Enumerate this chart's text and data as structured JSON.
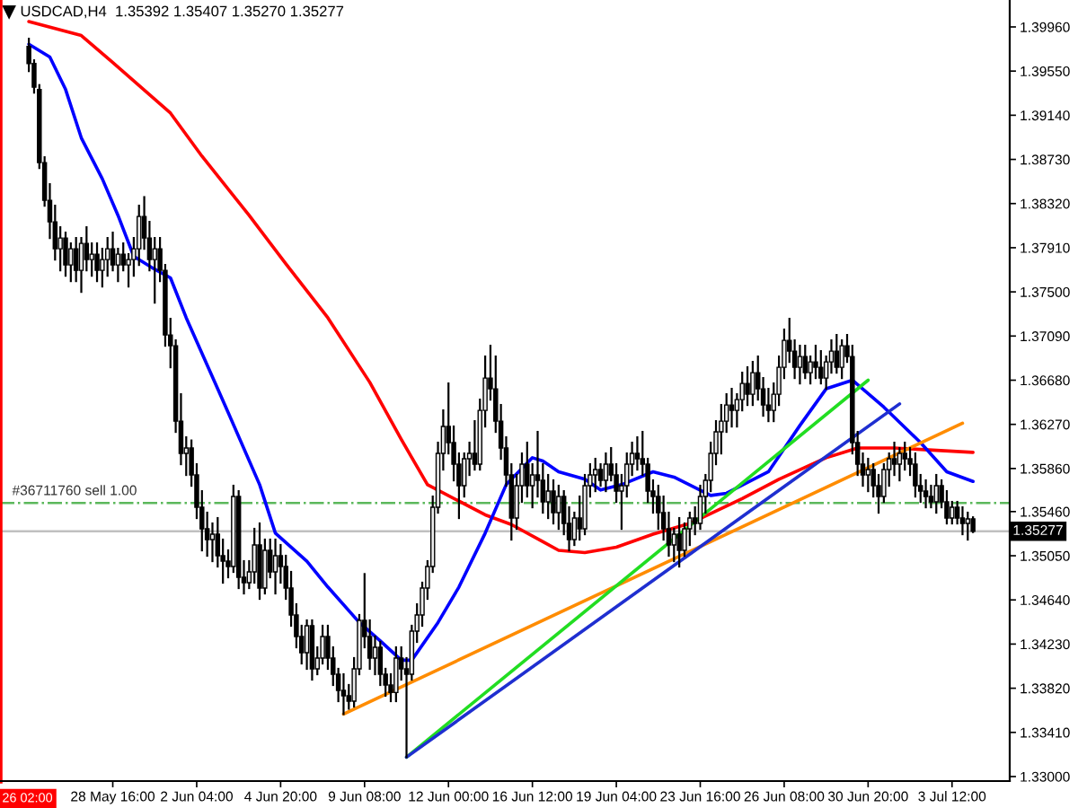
{
  "chart_data": {
    "type": "candlestick",
    "title": "USDCAD,H4  1.35392 1.35407 1.35270 1.35277",
    "categories": [
      null,
      null,
      null,
      null,
      null,
      null,
      null,
      null,
      null,
      null,
      null,
      null,
      null,
      null,
      null,
      null,
      "28 May 16:00",
      null,
      null,
      null,
      null,
      null,
      null,
      null,
      null,
      null,
      null,
      null,
      null,
      null,
      null,
      null,
      "2 Jun 04:00",
      null,
      null,
      null,
      null,
      null,
      null,
      null,
      null,
      null,
      null,
      null,
      null,
      null,
      null,
      null,
      "4 Jun 20:00",
      null,
      null,
      null,
      null,
      null,
      null,
      null,
      null,
      null,
      null,
      null,
      null,
      null,
      null,
      null,
      "9 Jun 08:00",
      null,
      null,
      null,
      null,
      null,
      null,
      null,
      null,
      null,
      null,
      null,
      null,
      null,
      null,
      null,
      "12 Jun 00:00",
      null,
      null,
      null,
      null,
      null,
      null,
      null,
      null,
      null,
      null,
      null,
      null,
      null,
      null,
      null,
      "16 Jun 12:00",
      null,
      null,
      null,
      null,
      null,
      null,
      null,
      null,
      null,
      null,
      null,
      null,
      null,
      null,
      null,
      "19 Jun 04:00",
      null,
      null,
      null,
      null,
      null,
      null,
      null,
      null,
      null,
      null,
      null,
      null,
      null,
      null,
      null,
      "23 Jun 16:00",
      null,
      null,
      null,
      null,
      null,
      null,
      null,
      null,
      null,
      null,
      null,
      null,
      null,
      null,
      null,
      "26 Jun 08:00",
      null,
      null,
      null,
      null,
      null,
      null,
      null,
      null,
      null,
      null,
      null,
      null,
      null,
      null,
      null,
      "30 Jun 20:00",
      null,
      null,
      null,
      null,
      null,
      null,
      null,
      null,
      null,
      null,
      null,
      null,
      null,
      null,
      null,
      "3 Jul 12:00",
      null,
      null,
      null,
      null
    ],
    "ohlc": [
      [
        1.3978,
        1.3985,
        1.3955,
        1.3962
      ],
      [
        1.3962,
        1.3965,
        1.3935,
        1.394
      ],
      [
        1.3938,
        1.3942,
        1.3865,
        1.387
      ],
      [
        1.387,
        1.3875,
        1.383,
        1.3835
      ],
      [
        1.3835,
        1.385,
        1.38,
        1.3815
      ],
      [
        1.3815,
        1.383,
        1.378,
        1.379
      ],
      [
        1.379,
        1.381,
        1.377,
        1.38
      ],
      [
        1.38,
        1.3805,
        1.3765,
        1.3775
      ],
      [
        1.3775,
        1.3795,
        1.376,
        1.379
      ],
      [
        1.379,
        1.38,
        1.376,
        1.377
      ],
      [
        1.377,
        1.38,
        1.375,
        1.3795
      ],
      [
        1.3795,
        1.381,
        1.377,
        1.378
      ],
      [
        1.378,
        1.3795,
        1.3765,
        1.3785
      ],
      [
        1.3785,
        1.3795,
        1.376,
        1.377
      ],
      [
        1.377,
        1.379,
        1.3755,
        1.378
      ],
      [
        1.378,
        1.38,
        1.3765,
        1.379
      ],
      [
        1.379,
        1.3805,
        1.377,
        1.3775
      ],
      [
        1.3775,
        1.379,
        1.376,
        1.3785
      ],
      [
        1.3785,
        1.3795,
        1.377,
        1.3775
      ],
      [
        1.3775,
        1.3785,
        1.3755,
        1.378
      ],
      [
        1.378,
        1.38,
        1.3765,
        1.379
      ],
      [
        1.379,
        1.383,
        1.3775,
        1.382
      ],
      [
        1.382,
        1.3838,
        1.379,
        1.38
      ],
      [
        1.38,
        1.3815,
        1.377,
        1.378
      ],
      [
        1.378,
        1.38,
        1.374,
        1.379
      ],
      [
        1.379,
        1.38,
        1.376,
        1.377
      ],
      [
        1.377,
        1.3775,
        1.37,
        1.371
      ],
      [
        1.371,
        1.3725,
        1.368,
        1.37
      ],
      [
        1.37,
        1.3705,
        1.362,
        1.363
      ],
      [
        1.363,
        1.3655,
        1.359,
        1.36
      ],
      [
        1.36,
        1.3615,
        1.358,
        1.3605
      ],
      [
        1.3605,
        1.3612,
        1.357,
        1.358
      ],
      [
        1.358,
        1.359,
        1.354,
        1.355
      ],
      [
        1.355,
        1.3565,
        1.351,
        1.353
      ],
      [
        1.353,
        1.3545,
        1.3505,
        1.352
      ],
      [
        1.352,
        1.3535,
        1.35,
        1.3525
      ],
      [
        1.3525,
        1.354,
        1.3495,
        1.3505
      ],
      [
        1.3505,
        1.352,
        1.348,
        1.35
      ],
      [
        1.35,
        1.351,
        1.3485,
        1.3495
      ],
      [
        1.3495,
        1.357,
        1.349,
        1.356
      ],
      [
        1.356,
        1.3565,
        1.3475,
        1.3485
      ],
      [
        1.3485,
        1.35,
        1.347,
        1.348
      ],
      [
        1.348,
        1.35,
        1.3475,
        1.349
      ],
      [
        1.349,
        1.353,
        1.348,
        1.3515
      ],
      [
        1.3515,
        1.3535,
        1.3465,
        1.3475
      ],
      [
        1.3475,
        1.352,
        1.347,
        1.351
      ],
      [
        1.351,
        1.352,
        1.3485,
        1.349
      ],
      [
        1.349,
        1.352,
        1.347,
        1.3505
      ],
      [
        1.3505,
        1.3515,
        1.348,
        1.3495
      ],
      [
        1.3495,
        1.3505,
        1.3465,
        1.3475
      ],
      [
        1.3475,
        1.349,
        1.344,
        1.345
      ],
      [
        1.345,
        1.346,
        1.342,
        1.343
      ],
      [
        1.343,
        1.344,
        1.3405,
        1.3415
      ],
      [
        1.3415,
        1.3445,
        1.34,
        1.344
      ],
      [
        1.344,
        1.3445,
        1.339,
        1.34
      ],
      [
        1.34,
        1.342,
        1.3395,
        1.341
      ],
      [
        1.341,
        1.344,
        1.3405,
        1.343
      ],
      [
        1.343,
        1.344,
        1.34,
        1.341
      ],
      [
        1.341,
        1.342,
        1.3385,
        1.3395
      ],
      [
        1.3395,
        1.34,
        1.337,
        1.338
      ],
      [
        1.338,
        1.3395,
        1.3358,
        1.3375
      ],
      [
        1.3375,
        1.3385,
        1.3363,
        1.337
      ],
      [
        1.337,
        1.341,
        1.3365,
        1.34
      ],
      [
        1.34,
        1.345,
        1.3395,
        1.3445
      ],
      [
        1.3445,
        1.3488,
        1.342,
        1.343
      ],
      [
        1.343,
        1.3445,
        1.34,
        1.341
      ],
      [
        1.341,
        1.343,
        1.3395,
        1.342
      ],
      [
        1.342,
        1.3425,
        1.3385,
        1.3395
      ],
      [
        1.3395,
        1.34,
        1.3375,
        1.3385
      ],
      [
        1.3385,
        1.3395,
        1.337,
        1.3378
      ],
      [
        1.3378,
        1.342,
        1.337,
        1.341
      ],
      [
        1.341,
        1.342,
        1.339,
        1.34
      ],
      [
        1.34,
        1.341,
        1.3318,
        1.3395
      ],
      [
        1.3395,
        1.344,
        1.339,
        1.3435
      ],
      [
        1.3435,
        1.346,
        1.3425,
        1.345
      ],
      [
        1.345,
        1.348,
        1.344,
        1.3475
      ],
      [
        1.3475,
        1.35,
        1.3465,
        1.3495
      ],
      [
        1.3495,
        1.356,
        1.349,
        1.355
      ],
      [
        1.355,
        1.361,
        1.3545,
        1.36
      ],
      [
        1.36,
        1.364,
        1.3585,
        1.3625
      ],
      [
        1.3625,
        1.3665,
        1.36,
        1.361
      ],
      [
        1.361,
        1.3625,
        1.3575,
        1.359
      ],
      [
        1.359,
        1.36,
        1.354,
        1.357
      ],
      [
        1.357,
        1.36,
        1.356,
        1.3595
      ],
      [
        1.3595,
        1.361,
        1.358,
        1.36
      ],
      [
        1.36,
        1.363,
        1.3585,
        1.359
      ],
      [
        1.359,
        1.365,
        1.3585,
        1.364
      ],
      [
        1.364,
        1.369,
        1.3625,
        1.367
      ],
      [
        1.367,
        1.37,
        1.365,
        1.366
      ],
      [
        1.366,
        1.369,
        1.362,
        1.363
      ],
      [
        1.363,
        1.3645,
        1.3595,
        1.3605
      ],
      [
        1.3605,
        1.3615,
        1.357,
        1.358
      ],
      [
        1.358,
        1.359,
        1.352,
        1.354
      ],
      [
        1.354,
        1.358,
        1.353,
        1.357
      ],
      [
        1.357,
        1.36,
        1.3555,
        1.359
      ],
      [
        1.359,
        1.361,
        1.356,
        1.357
      ],
      [
        1.357,
        1.359,
        1.355,
        1.358
      ],
      [
        1.358,
        1.362,
        1.356,
        1.3575
      ],
      [
        1.3575,
        1.359,
        1.3545,
        1.3555
      ],
      [
        1.3555,
        1.358,
        1.354,
        1.3565
      ],
      [
        1.3565,
        1.3575,
        1.3535,
        1.3545
      ],
      [
        1.3545,
        1.357,
        1.353,
        1.356
      ],
      [
        1.356,
        1.3565,
        1.3525,
        1.3535
      ],
      [
        1.3535,
        1.355,
        1.351,
        1.352
      ],
      [
        1.352,
        1.3545,
        1.3515,
        1.354
      ],
      [
        1.354,
        1.356,
        1.352,
        1.353
      ],
      [
        1.353,
        1.358,
        1.3525,
        1.357
      ],
      [
        1.357,
        1.359,
        1.356,
        1.358
      ],
      [
        1.358,
        1.3595,
        1.3565,
        1.3585
      ],
      [
        1.3585,
        1.359,
        1.357,
        1.3575
      ],
      [
        1.3575,
        1.36,
        1.3565,
        1.359
      ],
      [
        1.359,
        1.3605,
        1.3575,
        1.358
      ],
      [
        1.358,
        1.359,
        1.3555,
        1.3565
      ],
      [
        1.3565,
        1.358,
        1.353,
        1.357
      ],
      [
        1.357,
        1.36,
        1.356,
        1.359
      ],
      [
        1.359,
        1.361,
        1.358,
        1.36
      ],
      [
        1.36,
        1.3615,
        1.3585,
        1.3595
      ],
      [
        1.3595,
        1.362,
        1.358,
        1.359
      ],
      [
        1.359,
        1.3595,
        1.3555,
        1.3565
      ],
      [
        1.3565,
        1.3575,
        1.3545,
        1.356
      ],
      [
        1.356,
        1.357,
        1.353,
        1.3545
      ],
      [
        1.3545,
        1.356,
        1.352,
        1.353
      ],
      [
        1.353,
        1.3545,
        1.3505,
        1.3515
      ],
      [
        1.3515,
        1.353,
        1.35,
        1.3525
      ],
      [
        1.3525,
        1.354,
        1.3495,
        1.351
      ],
      [
        1.351,
        1.3535,
        1.3505,
        1.353
      ],
      [
        1.353,
        1.3545,
        1.3515,
        1.354
      ],
      [
        1.354,
        1.355,
        1.3525,
        1.3535
      ],
      [
        1.3535,
        1.357,
        1.353,
        1.356
      ],
      [
        1.356,
        1.358,
        1.3545,
        1.3575
      ],
      [
        1.3575,
        1.361,
        1.3565,
        1.36
      ],
      [
        1.36,
        1.363,
        1.359,
        1.362
      ],
      [
        1.362,
        1.3645,
        1.36,
        1.363
      ],
      [
        1.363,
        1.3655,
        1.362,
        1.3645
      ],
      [
        1.3645,
        1.366,
        1.3625,
        1.364
      ],
      [
        1.364,
        1.3655,
        1.3625,
        1.365
      ],
      [
        1.365,
        1.3675,
        1.364,
        1.3665
      ],
      [
        1.3665,
        1.368,
        1.3645,
        1.3655
      ],
      [
        1.3655,
        1.3685,
        1.3645,
        1.3675
      ],
      [
        1.3675,
        1.369,
        1.365,
        1.366
      ],
      [
        1.366,
        1.367,
        1.3635,
        1.3645
      ],
      [
        1.3645,
        1.366,
        1.363,
        1.364
      ],
      [
        1.364,
        1.3665,
        1.363,
        1.3655
      ],
      [
        1.3655,
        1.369,
        1.3645,
        1.368
      ],
      [
        1.368,
        1.3715,
        1.367,
        1.3705
      ],
      [
        1.3705,
        1.3725,
        1.3685,
        1.3695
      ],
      [
        1.3695,
        1.3705,
        1.367,
        1.368
      ],
      [
        1.368,
        1.37,
        1.3665,
        1.369
      ],
      [
        1.369,
        1.37,
        1.367,
        1.3675
      ],
      [
        1.3675,
        1.369,
        1.3665,
        1.3685
      ],
      [
        1.3685,
        1.37,
        1.367,
        1.368
      ],
      [
        1.368,
        1.3695,
        1.3665,
        1.367
      ],
      [
        1.367,
        1.369,
        1.366,
        1.3685
      ],
      [
        1.3685,
        1.3705,
        1.3675,
        1.3695
      ],
      [
        1.3695,
        1.371,
        1.3675,
        1.368
      ],
      [
        1.368,
        1.3705,
        1.367,
        1.37
      ],
      [
        1.37,
        1.371,
        1.3685,
        1.369
      ],
      [
        1.369,
        1.37,
        1.36,
        1.361
      ],
      [
        1.361,
        1.362,
        1.358,
        1.359
      ],
      [
        1.359,
        1.36,
        1.357,
        1.358
      ],
      [
        1.358,
        1.3595,
        1.3565,
        1.3585
      ],
      [
        1.3585,
        1.359,
        1.356,
        1.357
      ],
      [
        1.357,
        1.358,
        1.3545,
        1.356
      ],
      [
        1.356,
        1.359,
        1.3555,
        1.3585
      ],
      [
        1.3585,
        1.36,
        1.357,
        1.3595
      ],
      [
        1.3595,
        1.361,
        1.358,
        1.359
      ],
      [
        1.359,
        1.3605,
        1.3575,
        1.36
      ],
      [
        1.36,
        1.361,
        1.3585,
        1.3595
      ],
      [
        1.3595,
        1.3605,
        1.358,
        1.359
      ],
      [
        1.359,
        1.36,
        1.356,
        1.357
      ],
      [
        1.357,
        1.358,
        1.3555,
        1.3565
      ],
      [
        1.3565,
        1.3575,
        1.355,
        1.356
      ],
      [
        1.356,
        1.357,
        1.355,
        1.3555
      ],
      [
        1.3555,
        1.358,
        1.3545,
        1.357
      ],
      [
        1.357,
        1.3575,
        1.355,
        1.3555
      ],
      [
        1.3555,
        1.3565,
        1.3535,
        1.354
      ],
      [
        1.354,
        1.3555,
        1.3535,
        1.355
      ],
      [
        1.355,
        1.3555,
        1.3535,
        1.354
      ],
      [
        1.354,
        1.355,
        1.3525,
        1.3535
      ],
      [
        1.3535,
        1.3545,
        1.352,
        1.35392
      ],
      [
        1.35392,
        1.35407,
        1.3527,
        1.35277
      ]
    ],
    "series": [
      {
        "type": "line",
        "color": "#ff0000",
        "values": [
          1.4001,
          null,
          null,
          null,
          null,
          null,
          null,
          null,
          null,
          null,
          1.3988,
          null,
          null,
          null,
          null,
          null,
          1.3963,
          null,
          null,
          null,
          null,
          null,
          null,
          null,
          null,
          null,
          null,
          1.3916,
          null,
          null,
          null,
          null,
          null,
          1.3876,
          null,
          null,
          null,
          null,
          null,
          null,
          null,
          null,
          1.3821,
          null,
          null,
          null,
          null,
          null,
          null,
          1.3776,
          null,
          null,
          null,
          null,
          null,
          null,
          null,
          1.3726,
          null,
          null,
          null,
          null,
          null,
          null,
          null,
          1.3666,
          null,
          null,
          null,
          null,
          null,
          1.3613,
          null,
          null,
          null,
          null,
          1.3571,
          null,
          null,
          null,
          null,
          null,
          null,
          null,
          null,
          null,
          null,
          1.3543,
          null,
          null,
          null,
          null,
          1.3534,
          null,
          null,
          null,
          null,
          null,
          1.3518,
          null,
          null,
          1.351,
          null,
          null,
          null,
          null,
          1.3508,
          null,
          null,
          null,
          null,
          null,
          1.3513,
          null,
          null,
          null,
          null,
          null,
          null,
          1.3525,
          null,
          null,
          null,
          null,
          null,
          null,
          1.3535,
          null,
          null,
          null,
          null,
          null,
          null,
          null,
          null,
          null,
          1.3558,
          null,
          null,
          null,
          null,
          null,
          null,
          1.3576,
          null,
          null,
          null,
          null,
          null,
          null,
          null,
          null,
          1.3596,
          null,
          null,
          null,
          null,
          null,
          1.3605,
          null,
          null,
          null,
          null,
          null,
          null,
          1.3605,
          null,
          null,
          null,
          null,
          null,
          null,
          null,
          null,
          null,
          null,
          null,
          null,
          null,
          null,
          1.3601
        ]
      },
      {
        "type": "line",
        "color": "#0000ff",
        "values": [
          1.398,
          null,
          null,
          null,
          1.3968,
          null,
          null,
          1.3938,
          null,
          null,
          1.3893,
          null,
          null,
          null,
          1.3855,
          null,
          null,
          1.3821,
          null,
          null,
          1.3783,
          null,
          null,
          null,
          1.3771,
          null,
          null,
          1.3763,
          null,
          null,
          1.3726,
          null,
          null,
          null,
          null,
          null,
          1.366,
          null,
          1.3638,
          null,
          null,
          null,
          null,
          null,
          1.3571,
          null,
          null,
          1.3526,
          null,
          null,
          null,
          null,
          null,
          1.35,
          null,
          null,
          null,
          1.3476,
          null,
          null,
          null,
          null,
          null,
          1.3443,
          null,
          null,
          null,
          1.3426,
          null,
          null,
          null,
          1.3408,
          null,
          1.3408,
          null,
          null,
          null,
          null,
          1.3443,
          null,
          null,
          null,
          1.3476,
          null,
          null,
          null,
          null,
          1.3526,
          null,
          null,
          null,
          1.3571,
          null,
          null,
          null,
          null,
          1.3596,
          null,
          1.3593,
          null,
          null,
          1.3583,
          null,
          null,
          null,
          null,
          1.3576,
          null,
          null,
          1.3566,
          null,
          null,
          null,
          1.3571,
          null,
          null,
          null,
          null,
          null,
          1.3583,
          null,
          null,
          null,
          1.3578,
          null,
          null,
          null,
          null,
          null,
          null,
          1.3561,
          null,
          null,
          1.3563,
          null,
          null,
          null,
          null,
          null,
          null,
          null,
          1.3583,
          null,
          null,
          null,
          null,
          null,
          1.3626,
          null,
          null,
          null,
          null,
          1.366,
          null,
          null,
          null,
          null,
          1.3668,
          null,
          null,
          null,
          null,
          null,
          1.3643,
          null,
          null,
          null,
          null,
          null,
          null,
          1.361,
          null,
          null,
          null,
          null,
          1.3583,
          null,
          null,
          null,
          null,
          1.3574
        ]
      },
      {
        "type": "line",
        "color": "#ff8c00",
        "values": [
          null,
          null,
          null,
          null,
          null,
          null,
          null,
          null,
          null,
          null,
          null,
          null,
          null,
          null,
          null,
          null,
          null,
          null,
          null,
          null,
          null,
          null,
          null,
          null,
          null,
          null,
          null,
          null,
          null,
          null,
          null,
          null,
          null,
          null,
          null,
          null,
          null,
          null,
          null,
          null,
          null,
          null,
          null,
          null,
          null,
          null,
          null,
          null,
          null,
          null,
          null,
          null,
          null,
          null,
          null,
          null,
          null,
          null,
          null,
          null,
          1.3358,
          null,
          null,
          null,
          null,
          null,
          null,
          null,
          null,
          null,
          null,
          null,
          null,
          null,
          null,
          null,
          null,
          null,
          null,
          null,
          null,
          null,
          null,
          null,
          null,
          null,
          null,
          null,
          null,
          null,
          null,
          null,
          null,
          null,
          null,
          null,
          null,
          null,
          null,
          null,
          null,
          null,
          null,
          null,
          null,
          null,
          null,
          null,
          null,
          null,
          null,
          null,
          null,
          null,
          null,
          null,
          null,
          null,
          null,
          null,
          null,
          null,
          null,
          null,
          null,
          null,
          null,
          null,
          null,
          null,
          null,
          null,
          null,
          null,
          null,
          null,
          null,
          null,
          null,
          null,
          null,
          null,
          null,
          null,
          null,
          null,
          null,
          null,
          null,
          null,
          null,
          null,
          null,
          null,
          null,
          null,
          null,
          null,
          null,
          null,
          null,
          null,
          null,
          null,
          null,
          null,
          null,
          null,
          null,
          null,
          null,
          null,
          null,
          null,
          null,
          null,
          null,
          null,
          1.3628,
          null,
          null
        ]
      },
      {
        "type": "line",
        "color": "#22dd22",
        "values": [
          null,
          null,
          null,
          null,
          null,
          null,
          null,
          null,
          null,
          null,
          null,
          null,
          null,
          null,
          null,
          null,
          null,
          null,
          null,
          null,
          null,
          null,
          null,
          null,
          null,
          null,
          null,
          null,
          null,
          null,
          null,
          null,
          null,
          null,
          null,
          null,
          null,
          null,
          null,
          null,
          null,
          null,
          null,
          null,
          null,
          null,
          null,
          null,
          null,
          null,
          null,
          null,
          null,
          null,
          null,
          null,
          null,
          null,
          null,
          null,
          null,
          null,
          null,
          null,
          null,
          null,
          null,
          null,
          null,
          null,
          null,
          null,
          1.3318,
          null,
          null,
          null,
          null,
          null,
          null,
          null,
          null,
          null,
          null,
          null,
          null,
          null,
          null,
          null,
          null,
          null,
          null,
          null,
          null,
          null,
          null,
          null,
          null,
          null,
          null,
          null,
          null,
          null,
          null,
          null,
          null,
          null,
          null,
          null,
          null,
          null,
          null,
          null,
          null,
          null,
          null,
          null,
          null,
          null,
          null,
          null,
          null,
          null,
          null,
          null,
          null,
          null,
          null,
          null,
          null,
          null,
          null,
          null,
          null,
          null,
          null,
          null,
          null,
          null,
          null,
          null,
          null,
          null,
          null,
          null,
          null,
          null,
          null,
          null,
          null,
          null,
          null,
          null,
          null,
          null,
          null,
          null,
          null,
          null,
          null,
          null,
          1.3668,
          null,
          null,
          null,
          null,
          null,
          null,
          null,
          null,
          null,
          null,
          null,
          null,
          null,
          null,
          null,
          null,
          null,
          null,
          null,
          null
        ]
      },
      {
        "type": "line",
        "color": "#1f2fd0",
        "values": [
          null,
          null,
          null,
          null,
          null,
          null,
          null,
          null,
          null,
          null,
          null,
          null,
          null,
          null,
          null,
          null,
          null,
          null,
          null,
          null,
          null,
          null,
          null,
          null,
          null,
          null,
          null,
          null,
          null,
          null,
          null,
          null,
          null,
          null,
          null,
          null,
          null,
          null,
          null,
          null,
          null,
          null,
          null,
          null,
          null,
          null,
          null,
          null,
          null,
          null,
          null,
          null,
          null,
          null,
          null,
          null,
          null,
          null,
          null,
          null,
          null,
          null,
          null,
          null,
          null,
          null,
          null,
          null,
          null,
          null,
          null,
          null,
          1.3318,
          null,
          null,
          null,
          null,
          null,
          null,
          null,
          null,
          null,
          null,
          null,
          null,
          null,
          null,
          null,
          null,
          null,
          null,
          null,
          null,
          null,
          null,
          null,
          null,
          null,
          null,
          null,
          null,
          null,
          null,
          null,
          null,
          null,
          null,
          null,
          null,
          null,
          null,
          null,
          null,
          null,
          null,
          null,
          null,
          null,
          null,
          null,
          null,
          null,
          null,
          null,
          null,
          null,
          null,
          null,
          null,
          null,
          null,
          null,
          null,
          null,
          null,
          null,
          null,
          null,
          null,
          null,
          null,
          null,
          null,
          null,
          null,
          null,
          null,
          null,
          null,
          null,
          null,
          null,
          null,
          null,
          null,
          null,
          null,
          null,
          null,
          null,
          null,
          null,
          null,
          null,
          null,
          null,
          1.3646,
          null,
          null,
          null,
          null,
          null,
          null,
          null,
          null,
          null,
          null,
          null,
          null,
          null,
          null
        ]
      }
    ],
    "ylim": [
      1.32958,
      1.4021
    ],
    "yticks": [
      {
        "value": 1.3996,
        "label": "1.39960"
      },
      {
        "value": 1.3955,
        "label": "1.39550"
      },
      {
        "value": 1.3914,
        "label": "1.39140"
      },
      {
        "value": 1.3873,
        "label": "1.38730"
      },
      {
        "value": 1.3832,
        "label": "1.38320"
      },
      {
        "value": 1.3791,
        "label": "1.37910"
      },
      {
        "value": 1.375,
        "label": "1.37500"
      },
      {
        "value": 1.3709,
        "label": "1.37090"
      },
      {
        "value": 1.3668,
        "label": "1.36680"
      },
      {
        "value": 1.3627,
        "label": "1.36270"
      },
      {
        "value": 1.3586,
        "label": "1.35860"
      },
      {
        "value": 1.3546,
        "label": "1.35460"
      },
      {
        "value": 1.3505,
        "label": "1.35050"
      },
      {
        "value": 1.3464,
        "label": "1.34640"
      },
      {
        "value": 1.3423,
        "label": "1.34230"
      },
      {
        "value": 1.3382,
        "label": "1.33820"
      },
      {
        "value": 1.3341,
        "label": "1.33410"
      },
      {
        "value": 1.33,
        "label": "1.33000"
      }
    ],
    "ref_lines": [
      {
        "axis": "y",
        "value": 1.3554,
        "label": "#36711760 sell 1.00",
        "color": "#5cb85c",
        "line_style": "dashdot"
      },
      {
        "axis": "y",
        "value": 1.35277,
        "label": "1.35277",
        "color": "#c0c0c0",
        "line_style": "solid"
      }
    ],
    "annotations": [
      "26 02:00"
    ]
  }
}
